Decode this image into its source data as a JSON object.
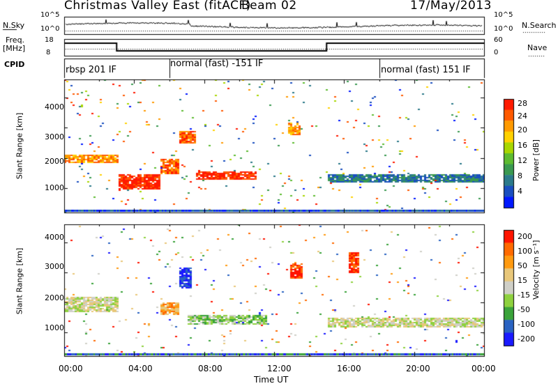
{
  "header": {
    "station": "Christmas Valley East (fitACF)",
    "beam": "Beam 02",
    "date": "17/May/2013"
  },
  "params": {
    "nsky_label": "N.Sky",
    "nsearch_label": "N.Search",
    "nsky_ticks": [
      "10^5",
      "10^0"
    ],
    "nsearch_ticks": [
      "10^5",
      "10^0"
    ],
    "freq_label": "Freq.",
    "freq_unit": "[MHz]",
    "freq_ticks": [
      "18",
      "8"
    ],
    "nave_label": "Nave",
    "nave_ticks": [
      "60",
      "0"
    ],
    "cpid_label": "CPID",
    "cpid_segments": [
      "rbsp 201 IF",
      "normal (fast) -151 IF",
      "normal (fast) 151 IF"
    ]
  },
  "colors": {
    "power": [
      "#0018ff",
      "#1a4fbf",
      "#2b7a8a",
      "#3a9950",
      "#5dbb30",
      "#a8d600",
      "#ffd100",
      "#ff9a00",
      "#ff5a00",
      "#ff1a00"
    ],
    "velocity": [
      "#1a1aff",
      "#2a63c2",
      "#3aa33a",
      "#8ed13e",
      "#cfcfc7",
      "#e8c77a",
      "#ff9a10",
      "#ff6a00",
      "#ff1400"
    ]
  },
  "chart_data": [
    {
      "type": "heatmap",
      "quantity": "power",
      "ylabel": "Slant Range [km]",
      "yticks": [
        1000,
        2000,
        3000,
        4000
      ],
      "ylim": [
        200,
        4600
      ],
      "colorbar_label": "Power [dB]",
      "colorbar_ticks": [
        "4",
        "8",
        "12",
        "16",
        "20",
        "24",
        "28"
      ],
      "colorbar_range": [
        0,
        30
      ],
      "features": [
        {
          "t": [
            0.0,
            3.0
          ],
          "range": [
            1850,
            2150
          ],
          "level": 7
        },
        {
          "t": [
            3.0,
            5.5
          ],
          "range": [
            1000,
            1500
          ],
          "level": 9
        },
        {
          "t": [
            5.5,
            6.5
          ],
          "range": [
            1500,
            2000
          ],
          "level": 8
        },
        {
          "t": [
            6.5,
            7.5
          ],
          "range": [
            2500,
            2900
          ],
          "level": 8
        },
        {
          "t": [
            7.5,
            11.0
          ],
          "range": [
            1300,
            1600
          ],
          "level": 9
        },
        {
          "t": [
            12.7,
            13.5
          ],
          "range": [
            2800,
            3200
          ],
          "level": 7
        },
        {
          "t": [
            15.0,
            24.0
          ],
          "range": [
            1200,
            1500
          ],
          "level": 2
        }
      ]
    },
    {
      "type": "heatmap",
      "quantity": "velocity",
      "ylabel": "Slant Range [km]",
      "yticks": [
        1000,
        2000,
        3000,
        4000
      ],
      "ylim": [
        200,
        4600
      ],
      "xlabel": "Time UT",
      "xticks": [
        "00:00",
        "04:00",
        "08:00",
        "12:00",
        "16:00",
        "20:00",
        "00:00"
      ],
      "xlim": [
        0,
        24
      ],
      "colorbar_label": "Velocity [m s⁻¹]",
      "colorbar_ticks": [
        "200",
        "100",
        "50",
        "15",
        "-15",
        "-50",
        "-100",
        "-200"
      ],
      "features": [
        {
          "t": [
            0.0,
            3.0
          ],
          "range": [
            1700,
            2200
          ],
          "level": 4
        },
        {
          "t": [
            5.5,
            6.5
          ],
          "range": [
            1600,
            2000
          ],
          "level": 6
        },
        {
          "t": [
            6.5,
            7.2
          ],
          "range": [
            2500,
            3200
          ],
          "level": 0
        },
        {
          "t": [
            7.0,
            11.5
          ],
          "range": [
            1250,
            1600
          ],
          "level": 3
        },
        {
          "t": [
            12.8,
            13.6
          ],
          "range": [
            2800,
            3300
          ],
          "level": 8
        },
        {
          "t": [
            16.2,
            16.8
          ],
          "range": [
            3000,
            3700
          ],
          "level": 8
        },
        {
          "t": [
            15.0,
            24.0
          ],
          "range": [
            1200,
            1500
          ],
          "level": 4
        }
      ]
    }
  ]
}
